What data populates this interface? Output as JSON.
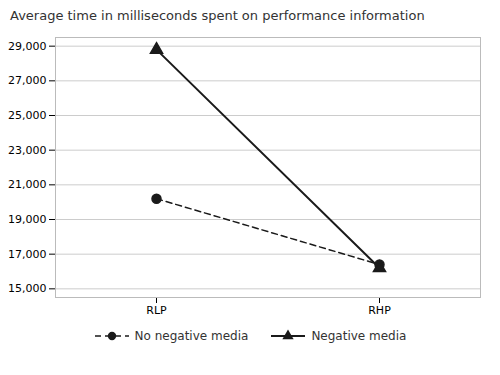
{
  "chart_data": {
    "type": "line",
    "title": "Average time in milliseconds spent on performance information",
    "categories": [
      "RLP",
      "RHP"
    ],
    "series": [
      {
        "name": "No negative media",
        "color": "#1a1a1a",
        "values": [
          20200,
          16400
        ],
        "marker": "circle",
        "line_style": "dashed"
      },
      {
        "name": "Negative media",
        "color": "#1a1a1a",
        "values": [
          28800,
          16200
        ],
        "marker": "triangle",
        "line_style": "solid"
      }
    ],
    "ylim": [
      14500,
      29500
    ],
    "yticks": [
      {
        "value": 15000,
        "label": "15,000"
      },
      {
        "value": 17000,
        "label": "17,000"
      },
      {
        "value": 19000,
        "label": "19,000"
      },
      {
        "value": 21000,
        "label": "21,000"
      },
      {
        "value": 23000,
        "label": "23,000"
      },
      {
        "value": 25000,
        "label": "25,000"
      },
      {
        "value": 27000,
        "label": "27,000"
      },
      {
        "value": 29000,
        "label": "29,000"
      }
    ],
    "grid": true,
    "legend": "bottom"
  }
}
